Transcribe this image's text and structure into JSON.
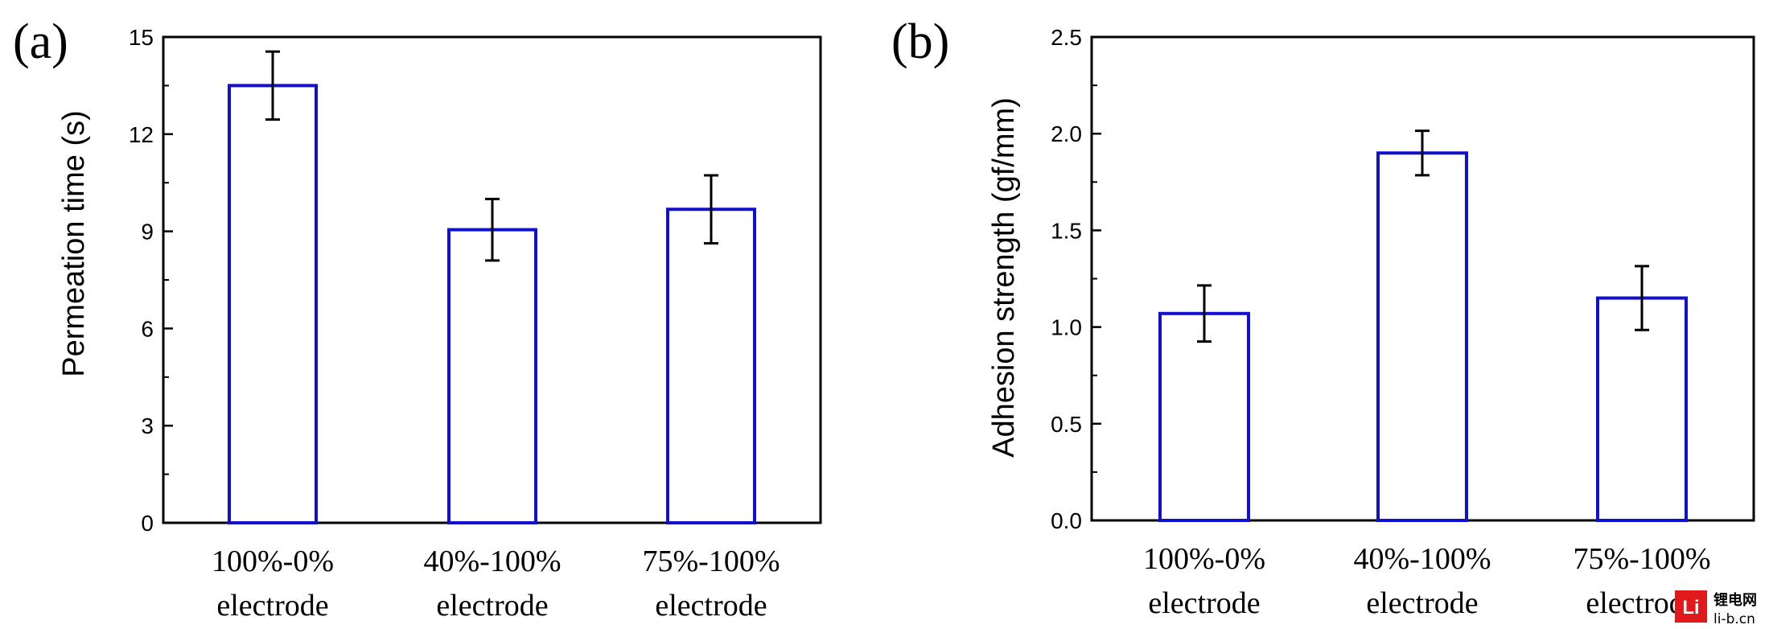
{
  "chart_data": [
    {
      "type": "bar",
      "panel_label": "(a)",
      "categories": [
        [
          "100%-0%",
          "electrode"
        ],
        [
          "40%-100%",
          "electrode"
        ],
        [
          "75%-100%",
          "electrode"
        ]
      ],
      "values": [
        13.5,
        9.05,
        9.68
      ],
      "errors": [
        1.05,
        0.95,
        1.05
      ],
      "ylabel": "Permeation time (s)",
      "xlabel": "",
      "ylim": [
        0,
        15
      ],
      "yticks": [
        "0",
        "3",
        "6",
        "9",
        "12",
        "15"
      ],
      "ytick_values": [
        0,
        3,
        6,
        9,
        12,
        15
      ],
      "bar_color": "#1010d0",
      "error_color": "#000000",
      "fill": "none",
      "grid": false,
      "legend": "none"
    },
    {
      "type": "bar",
      "panel_label": "(b)",
      "categories": [
        [
          "100%-0%",
          "electrode"
        ],
        [
          "40%-100%",
          "electrode"
        ],
        [
          "75%-100%",
          "electrode"
        ]
      ],
      "values": [
        1.07,
        1.9,
        1.15
      ],
      "errors": [
        0.145,
        0.115,
        0.165
      ],
      "ylabel": "Adhesion strength (gf/mm)",
      "xlabel": "",
      "ylim": [
        0,
        2.5
      ],
      "yticks": [
        "0.0",
        "0.5",
        "1.0",
        "1.5",
        "2.0",
        "2.5"
      ],
      "ytick_values": [
        0,
        0.5,
        1.0,
        1.5,
        2.0,
        2.5
      ],
      "bar_color": "#1010d0",
      "error_color": "#000000",
      "fill": "none",
      "grid": false,
      "legend": "none"
    }
  ],
  "watermark": {
    "logo_text": "Li",
    "cn_text": "锂电网",
    "url_text": "li-b.cn",
    "logo_color": "#e01a1a"
  }
}
